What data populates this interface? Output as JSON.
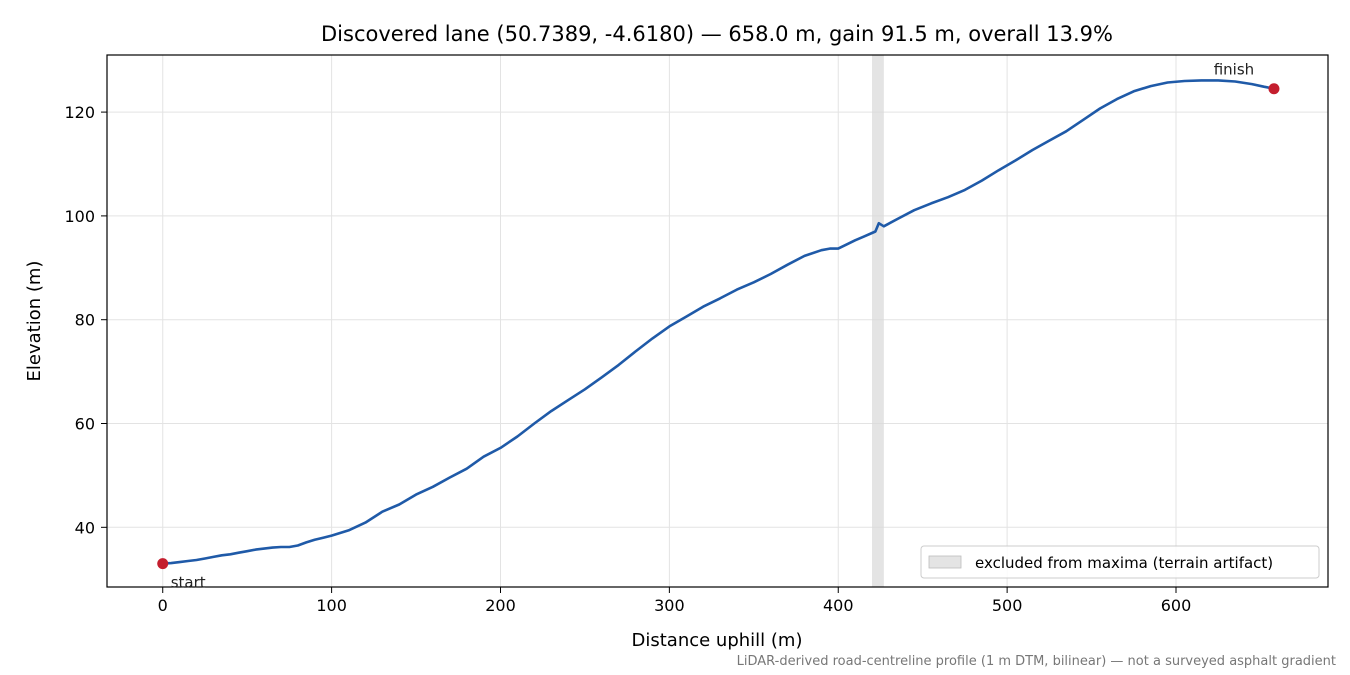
{
  "chart_data": {
    "type": "line",
    "title": "Discovered lane (50.7389, -4.6180) — 658.0 m, gain 91.5 m, overall 13.9%",
    "xlabel": "Distance uphill (m)",
    "ylabel": "Elevation (m)",
    "xlim": [
      -33,
      690
    ],
    "ylim": [
      28.5,
      131
    ],
    "xticks": [
      0,
      100,
      200,
      300,
      400,
      500,
      600
    ],
    "yticks": [
      40,
      60,
      80,
      100,
      120
    ],
    "grid": true,
    "line_color": "#1f5aa8",
    "marker_color": "#c41e2e",
    "band_color": "#d9d9d9",
    "series": [
      {
        "x": [
          0,
          5,
          10,
          15,
          20,
          25,
          30,
          35,
          40,
          45,
          50,
          55,
          60,
          65,
          70,
          75,
          80,
          85,
          90,
          95,
          100,
          110,
          120,
          130,
          140,
          150,
          160,
          170,
          180,
          190,
          200,
          210,
          220,
          230,
          240,
          250,
          260,
          270,
          280,
          290,
          300,
          310,
          320,
          330,
          340,
          350,
          360,
          370,
          380,
          390,
          395,
          400,
          405,
          410,
          415,
          420,
          422,
          424,
          427,
          435,
          445,
          455,
          465,
          475,
          485,
          495,
          505,
          515,
          525,
          535,
          545,
          555,
          565,
          575,
          585,
          595,
          605,
          615,
          625,
          635,
          645,
          652,
          658
        ],
        "y": [
          33.0,
          33.1,
          33.3,
          33.5,
          33.7,
          34.0,
          34.3,
          34.6,
          34.8,
          35.1,
          35.4,
          35.7,
          35.9,
          36.1,
          36.2,
          36.2,
          36.5,
          37.1,
          37.6,
          38.0,
          38.4,
          39.4,
          40.9,
          43.0,
          44.4,
          46.3,
          47.8,
          49.6,
          51.3,
          53.6,
          55.3,
          57.5,
          60.0,
          62.4,
          64.5,
          66.6,
          68.9,
          71.3,
          73.9,
          76.4,
          78.7,
          80.6,
          82.5,
          84.1,
          85.8,
          87.2,
          88.8,
          90.6,
          92.3,
          93.4,
          93.7,
          93.7,
          94.5,
          95.3,
          96.0,
          96.7,
          97.0,
          98.6,
          98.0,
          99.4,
          101.1,
          102.4,
          103.6,
          105.0,
          106.8,
          108.8,
          110.7,
          112.7,
          114.5,
          116.3,
          118.5,
          120.7,
          122.5,
          124.0,
          125.0,
          125.7,
          126.0,
          126.1,
          126.1,
          125.9,
          125.4,
          124.9,
          124.5
        ]
      }
    ],
    "excluded_band": [
      420,
      427
    ],
    "annotations": [
      {
        "label": "start",
        "x": 0,
        "y": 33.0
      },
      {
        "label": "finish",
        "x": 658,
        "y": 124.5
      }
    ],
    "legend": {
      "placement": "bottom-right",
      "entries": [
        "excluded from maxima (terrain artifact)"
      ]
    },
    "footnote": "LiDAR-derived road-centreline profile (1 m DTM, bilinear) — not a surveyed asphalt gradient"
  }
}
